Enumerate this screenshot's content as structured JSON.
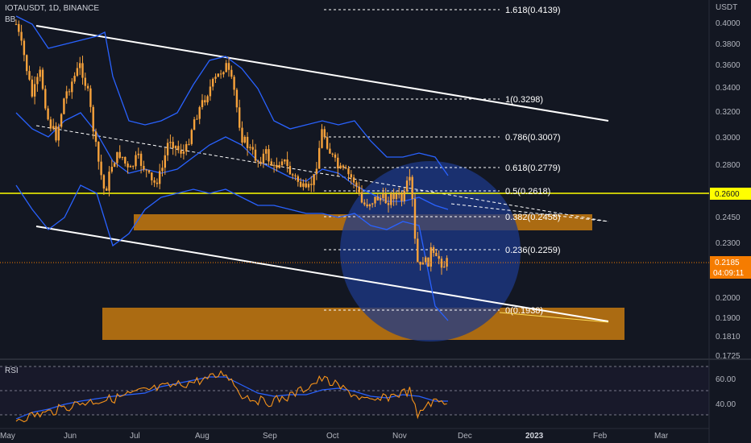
{
  "header": {
    "symbol_line": "IOTAUSDT, 1D, BINANCE",
    "indicator": "BB"
  },
  "rsi_label": "RSI",
  "price_axis": {
    "currency": "USDT",
    "ticks": [
      "0.4000",
      "0.3800",
      "0.3600",
      "0.3400",
      "0.3200",
      "0.3000",
      "0.2800",
      "0.2600",
      "0.2450",
      "0.2300",
      "0.2185",
      "0.2000",
      "0.1900",
      "0.1810",
      "0.1725"
    ],
    "current_price": "0.2185",
    "countdown": "04:09:11",
    "hline_label": "0.2600"
  },
  "rsi_axis": {
    "ticks": [
      "60.00",
      "40.00"
    ]
  },
  "time_axis": {
    "labels": [
      "May",
      "Jun",
      "Jul",
      "Aug",
      "Sep",
      "Oct",
      "Nov",
      "Dec",
      "2023",
      "Feb",
      "Mar"
    ]
  },
  "fib_levels": [
    {
      "label": "1.618(0.4139)"
    },
    {
      "label": "1(0.3298)"
    },
    {
      "label": "0.786(0.3007)"
    },
    {
      "label": "0.618(0.2779)"
    },
    {
      "label": "0.5(0.2618)"
    },
    {
      "label": "0.382(0.2458)"
    },
    {
      "label": "0.236(0.2259)"
    },
    {
      "label": "0(0.1938)"
    }
  ],
  "colors": {
    "background": "#131722",
    "candle": "#f7a23b",
    "bollinger": "#2962ff",
    "horizontal_line": "#ffff00",
    "zone": "#c77a0f",
    "circle": "#1e3a8a",
    "current_price_tag": "#f57c00",
    "rsi_line": "#f7931a",
    "rsi_ma": "#2962ff"
  }
}
